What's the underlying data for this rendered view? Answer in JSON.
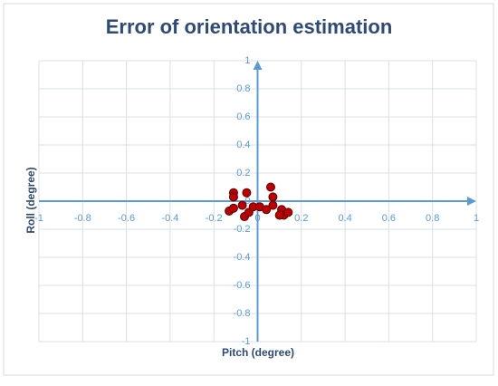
{
  "chart_data": {
    "type": "scatter",
    "title": "Error of orientation estimation",
    "x_label": "Pitch (degree)",
    "y_label": "Roll (degree)",
    "xlim": [
      -1,
      1
    ],
    "ylim": [
      -1,
      1
    ],
    "xticks": [
      -1,
      -0.8,
      -0.6,
      -0.4,
      -0.2,
      0,
      0.2,
      0.4,
      0.6,
      0.8,
      1
    ],
    "yticks": [
      -1,
      -0.8,
      -0.6,
      -0.4,
      -0.2,
      0,
      0.2,
      0.4,
      0.6,
      0.8,
      1
    ],
    "grid": true,
    "axis_color": "#5b9bd5",
    "series": [
      {
        "color": "#c00000",
        "x": [
          -0.11,
          -0.11,
          -0.13,
          -0.11,
          -0.05,
          -0.07,
          -0.06,
          -0.04,
          -0.02,
          0.01,
          0.04,
          0.06,
          0.07,
          0.07,
          0.11,
          0.12,
          0.14,
          0.1
        ],
        "values": [
          0.06,
          0.03,
          -0.07,
          -0.05,
          0.06,
          -0.03,
          -0.11,
          -0.08,
          -0.04,
          -0.04,
          -0.06,
          0.1,
          0.03,
          -0.03,
          -0.06,
          -0.1,
          -0.08,
          -0.1
        ]
      }
    ]
  }
}
